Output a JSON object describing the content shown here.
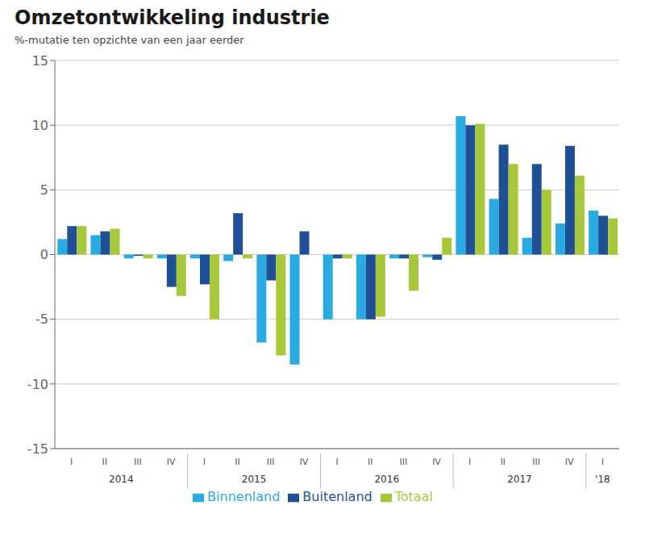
{
  "chart_data": {
    "type": "bar",
    "title": "Omzetontwikkeling industrie",
    "subtitle": "%-mutatie ten opzichte van een jaar eerder",
    "categories": [
      "I",
      "II",
      "III",
      "IV",
      "I",
      "II",
      "III",
      "IV",
      "I",
      "II",
      "III",
      "IV",
      "I",
      "II",
      "III",
      "IV",
      "I"
    ],
    "x_groups": [
      "2014",
      "2014",
      "2014",
      "2014",
      "2015",
      "2015",
      "2015",
      "2015",
      "2016",
      "2016",
      "2016",
      "2016",
      "2017",
      "2017",
      "2017",
      "2017",
      "'18"
    ],
    "series": [
      {
        "name": "Binnenland",
        "color": "#29ABE2",
        "values": [
          1.2,
          1.5,
          -0.3,
          -0.3,
          -0.3,
          -0.5,
          -6.8,
          -8.5,
          -5.0,
          -5.0,
          -0.3,
          -0.2,
          10.7,
          4.3,
          1.3,
          2.4,
          3.4
        ]
      },
      {
        "name": "Buitenland",
        "color": "#1F5096",
        "values": [
          2.2,
          1.8,
          -0.1,
          -2.5,
          -2.3,
          3.2,
          -2.0,
          1.8,
          -0.3,
          -5.0,
          -0.3,
          -0.4,
          10.0,
          8.5,
          7.0,
          8.4,
          3.0
        ]
      },
      {
        "name": "Totaal",
        "color": "#A8C83C",
        "values": [
          2.2,
          2.0,
          -0.3,
          -3.2,
          -5.0,
          -0.3,
          -7.8,
          0.0,
          -0.3,
          -4.8,
          -2.8,
          1.3,
          10.1,
          7.0,
          5.0,
          6.1,
          2.8
        ]
      }
    ],
    "ylim": [
      -15,
      15
    ],
    "yticks": [
      -15,
      -10,
      -5,
      0,
      5,
      10,
      15
    ],
    "grid": true,
    "legend": "bottom"
  }
}
